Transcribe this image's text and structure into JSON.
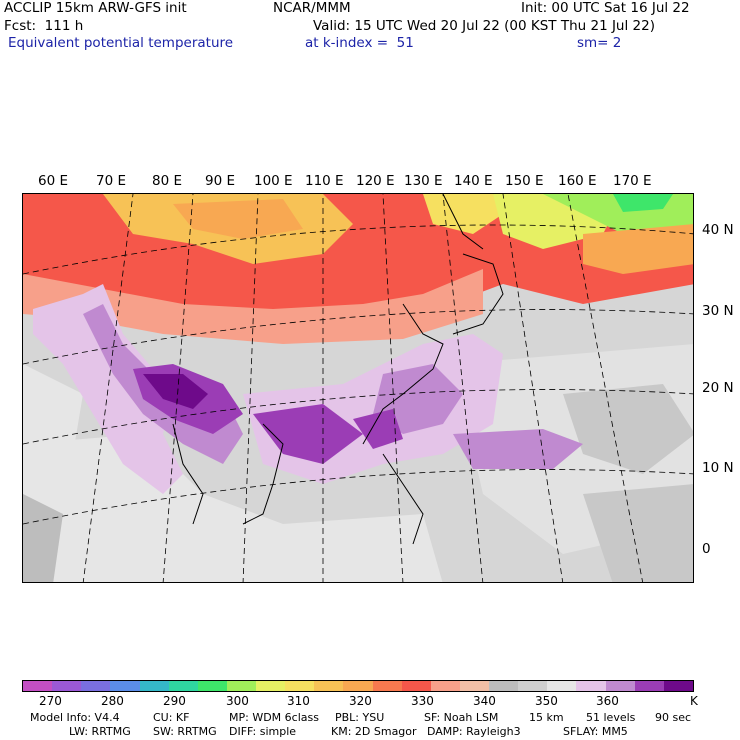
{
  "header": {
    "line1_left": "ACCLIP 15km ARW-GFS init",
    "line1_center": "NCAR/MMM",
    "line1_right": "Init: 00 UTC Sat 16 Jul 22",
    "line2_left": "Fcst:  111 h",
    "line2_right": "Valid: 15 UTC Wed 20 Jul 22 (00 KST Thu 21 Jul 22)",
    "line3_left": "Equivalent potential temperature",
    "line3_center": "at k-index =  51",
    "line3_right": "sm= 2"
  },
  "map": {
    "lon_labels": [
      "60 E",
      "70 E",
      "80 E",
      "90 E",
      "100 E",
      "110 E",
      "120 E",
      "130 E",
      "140 E",
      "150 E",
      "160 E",
      "170 E"
    ],
    "lat_labels": [
      "40 N",
      "30 N",
      "20 N",
      "10 N",
      "0"
    ]
  },
  "colorbar": {
    "colors": [
      "#c44fc4",
      "#9b59d6",
      "#7a6fe0",
      "#5b8de8",
      "#35b8c8",
      "#2fd6a0",
      "#3ee66a",
      "#a0ee5a",
      "#e6f064",
      "#f6e060",
      "#f7c256",
      "#f8a852",
      "#f7794f",
      "#f5574a",
      "#f7a08a",
      "#f1bfa6",
      "#bdbdbd",
      "#cfcfcf",
      "#e6e6e6",
      "#e4c4e8",
      "#c08ad0",
      "#9b3db5",
      "#6e0a8a"
    ],
    "labels": [
      "270",
      "280",
      "290",
      "300",
      "310",
      "320",
      "330",
      "340",
      "350",
      "360"
    ],
    "unit": "K"
  },
  "model_info": {
    "line1": [
      "Model Info: V4.4",
      "CU: KF",
      "MP: WDM 6class",
      "PBL: YSU",
      "SF: Noah LSM",
      "15 km",
      "51 levels",
      "90 sec"
    ],
    "line2": [
      "LW: RRTMG",
      "SW: RRTMG",
      "DIFF: simple",
      "KM: 2D Smagor",
      "DAMP: Rayleigh3",
      "SFLAY: MM5"
    ]
  }
}
